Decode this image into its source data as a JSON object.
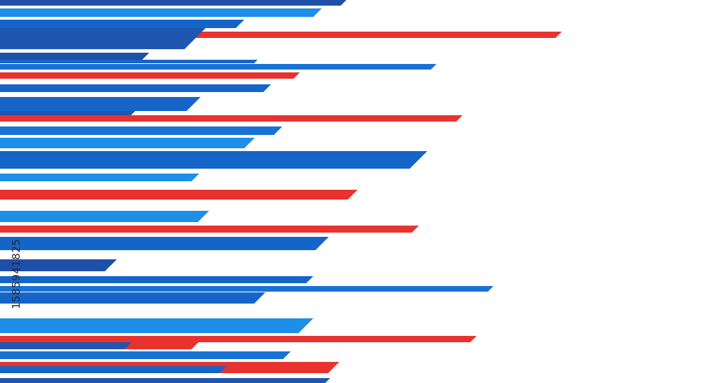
{
  "image_id": "1585941825"
}
